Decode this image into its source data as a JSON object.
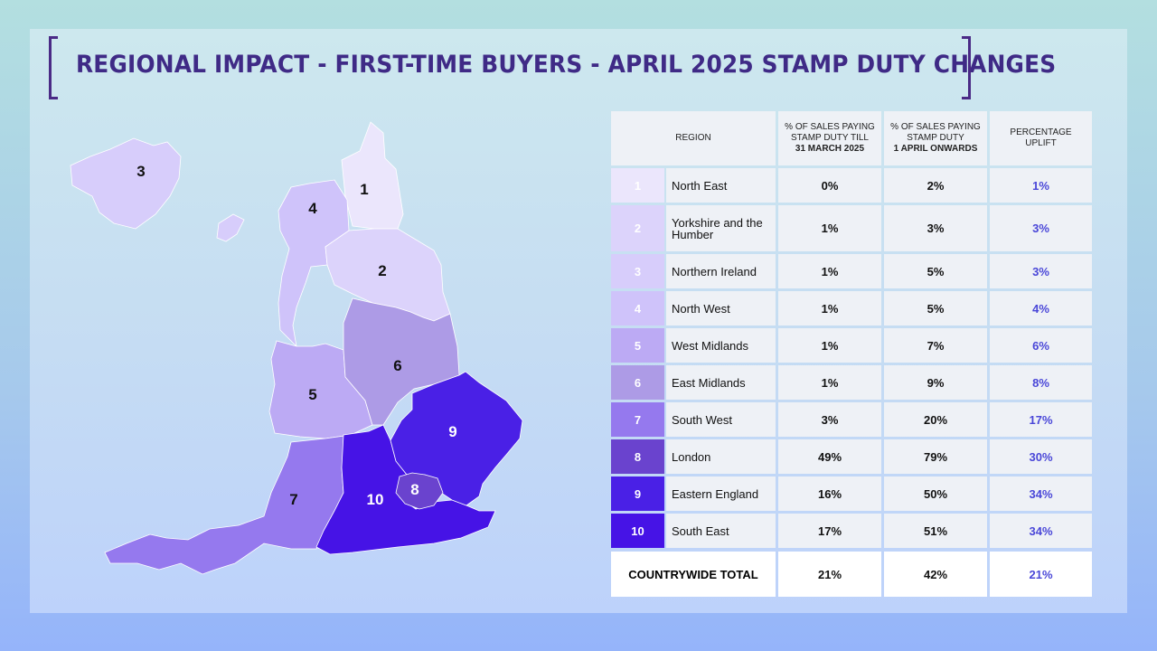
{
  "title": "REGIONAL IMPACT - FIRST-TIME BUYERS - APRIL 2025 STAMP DUTY CHANGES",
  "colors": {
    "shade1": "#ebe6fc",
    "shade2": "#dcd3fb",
    "shade3": "#d7cdfb",
    "shade4": "#cfc3fa",
    "shade5": "#bcaaf4",
    "shade6": "#ad9be6",
    "shade7": "#9579ee",
    "shade8": "#6a43ce",
    "shade9": "#4a20e6",
    "shade10": "#4613e6",
    "accent": "#4a47d8"
  },
  "headers": {
    "region": "REGION",
    "before_line1": "% OF SALES PAYING",
    "before_line2": "STAMP DUTY TILL",
    "before_line3": "31 MARCH 2025",
    "after_line1": "% OF SALES PAYING",
    "after_line2": "STAMP DUTY",
    "after_line3": "1 APRIL ONWARDS",
    "uplift_line1": "PERCENTAGE",
    "uplift_line2": "UPLIFT"
  },
  "rows": [
    {
      "num": "1",
      "region": "North East",
      "before": "0%",
      "after": "2%",
      "uplift": "1%"
    },
    {
      "num": "2",
      "region": "Yorkshire and the Humber",
      "before": "1%",
      "after": "3%",
      "uplift": "3%"
    },
    {
      "num": "3",
      "region": "Northern Ireland",
      "before": "1%",
      "after": "5%",
      "uplift": "3%"
    },
    {
      "num": "4",
      "region": "North West",
      "before": "1%",
      "after": "5%",
      "uplift": "4%"
    },
    {
      "num": "5",
      "region": "West Midlands",
      "before": "1%",
      "after": "7%",
      "uplift": "6%"
    },
    {
      "num": "6",
      "region": "East Midlands",
      "before": "1%",
      "after": "9%",
      "uplift": "8%"
    },
    {
      "num": "7",
      "region": "South West",
      "before": "3%",
      "after": "20%",
      "uplift": "17%"
    },
    {
      "num": "8",
      "region": "London",
      "before": "49%",
      "after": "79%",
      "uplift": "30%"
    },
    {
      "num": "9",
      "region": "Eastern England",
      "before": "16%",
      "after": "50%",
      "uplift": "34%"
    },
    {
      "num": "10",
      "region": "South East",
      "before": "17%",
      "after": "51%",
      "uplift": "34%"
    }
  ],
  "total": {
    "label": "COUNTRYWIDE TOTAL",
    "before": "21%",
    "after": "42%",
    "uplift": "21%"
  },
  "map_labels": [
    "1",
    "2",
    "3",
    "4",
    "5",
    "6",
    "7",
    "8",
    "9",
    "10"
  ]
}
